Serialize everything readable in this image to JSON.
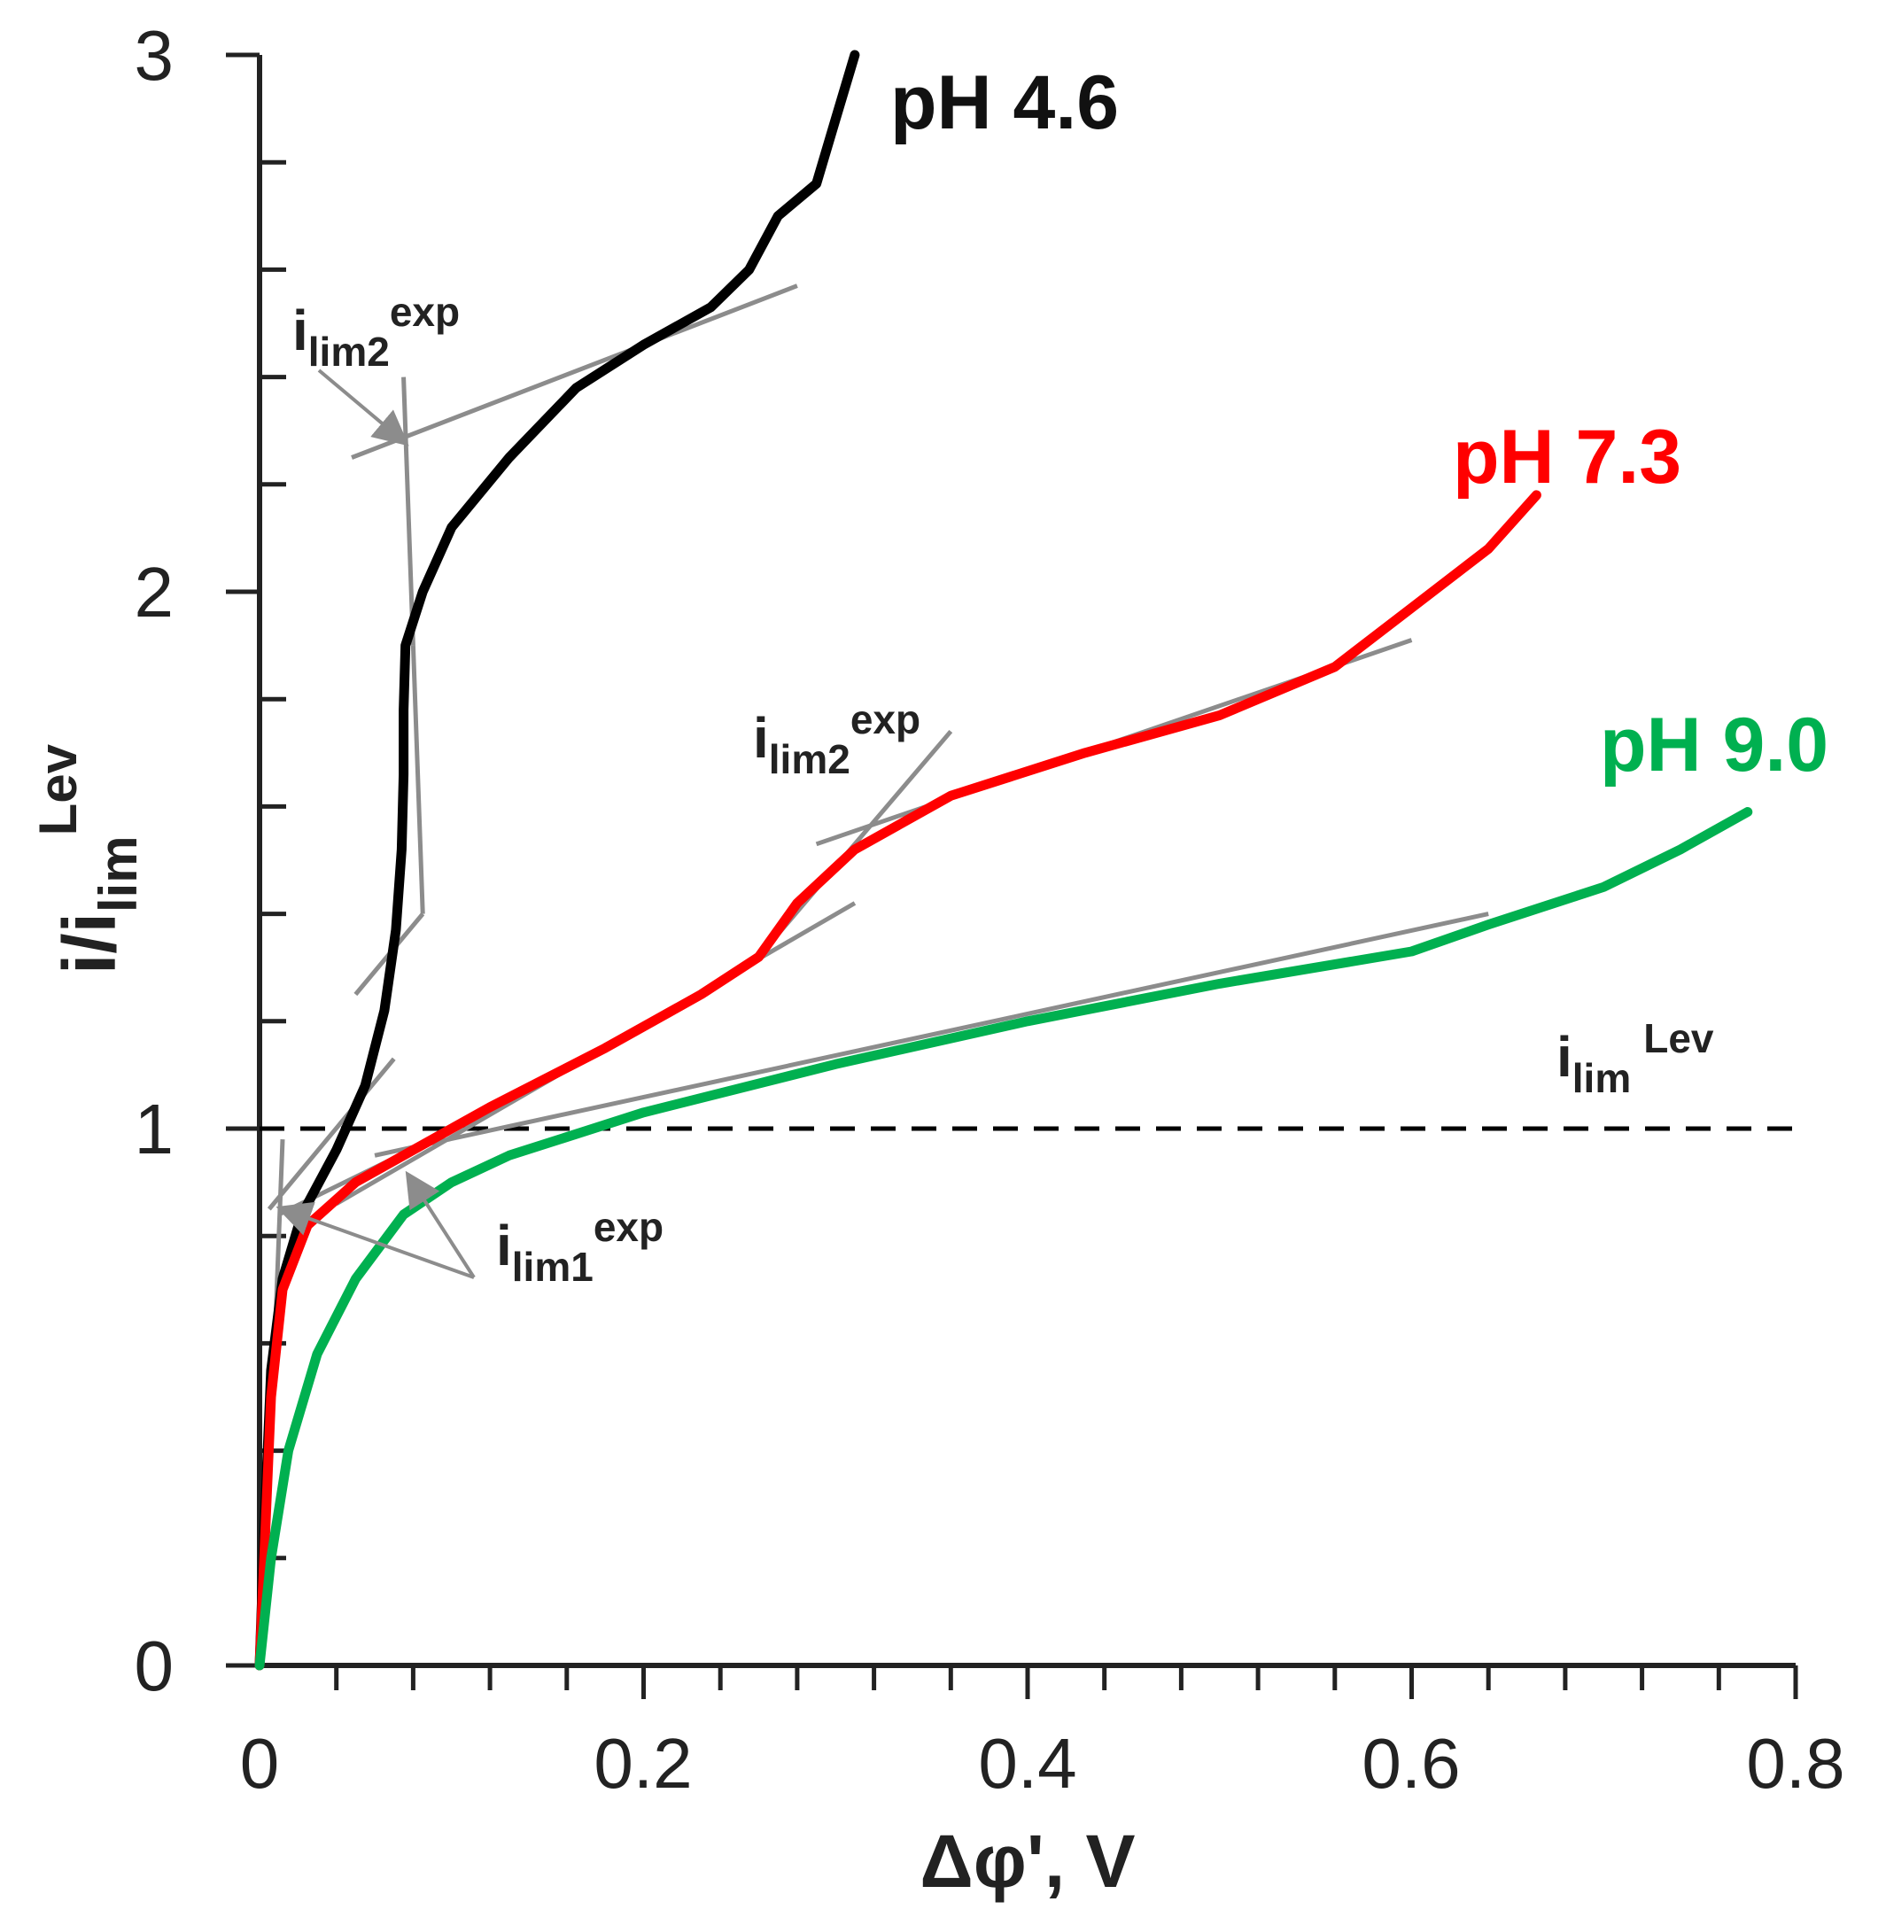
{
  "chart_data": {
    "type": "line",
    "title": "",
    "xlabel": "Δφ', V",
    "ylabel": {
      "main": "i/i",
      "sub": "lim",
      "sup": "Lev"
    },
    "xlim": [
      0,
      0.8
    ],
    "ylim": [
      0,
      3
    ],
    "x_ticks": [
      "0",
      "0.2",
      "0.4",
      "0.6",
      "0.8"
    ],
    "x_tick_values": [
      0,
      0.2,
      0.4,
      0.6,
      0.8
    ],
    "y_ticks": [
      "0",
      "1",
      "2",
      "3"
    ],
    "y_tick_values": [
      0,
      1,
      2,
      3
    ],
    "x_minor_step": 0.04,
    "y_minor_step": 0.2,
    "grid": false,
    "series": [
      {
        "name": "pH 4.6",
        "color": "#000000",
        "points": [
          [
            0,
            0
          ],
          [
            0.003,
            0.3
          ],
          [
            0.006,
            0.55
          ],
          [
            0.012,
            0.72
          ],
          [
            0.022,
            0.84
          ],
          [
            0.04,
            0.96
          ],
          [
            0.055,
            1.08
          ],
          [
            0.065,
            1.22
          ],
          [
            0.071,
            1.37
          ],
          [
            0.074,
            1.52
          ],
          [
            0.075,
            1.66
          ],
          [
            0.075,
            1.78
          ],
          [
            0.076,
            1.9
          ],
          [
            0.085,
            2.0
          ],
          [
            0.1,
            2.12
          ],
          [
            0.13,
            2.25
          ],
          [
            0.165,
            2.38
          ],
          [
            0.2,
            2.46
          ],
          [
            0.235,
            2.53
          ],
          [
            0.255,
            2.6
          ],
          [
            0.27,
            2.7
          ],
          [
            0.29,
            2.76
          ],
          [
            0.3,
            2.88
          ],
          [
            0.31,
            3.0
          ]
        ]
      },
      {
        "name": "pH 7.3",
        "color": "#ff0000",
        "points": [
          [
            0,
            0
          ],
          [
            0.003,
            0.25
          ],
          [
            0.006,
            0.5
          ],
          [
            0.012,
            0.7
          ],
          [
            0.025,
            0.82
          ],
          [
            0.05,
            0.9
          ],
          [
            0.08,
            0.96
          ],
          [
            0.12,
            1.04
          ],
          [
            0.18,
            1.15
          ],
          [
            0.23,
            1.25
          ],
          [
            0.26,
            1.32
          ],
          [
            0.28,
            1.42
          ],
          [
            0.31,
            1.52
          ],
          [
            0.36,
            1.62
          ],
          [
            0.43,
            1.7
          ],
          [
            0.5,
            1.77
          ],
          [
            0.56,
            1.86
          ],
          [
            0.6,
            1.97
          ],
          [
            0.64,
            2.08
          ],
          [
            0.665,
            2.18
          ]
        ]
      },
      {
        "name": "pH 9.0",
        "color": "#00b050",
        "points": [
          [
            0,
            0
          ],
          [
            0.006,
            0.2
          ],
          [
            0.015,
            0.4
          ],
          [
            0.03,
            0.58
          ],
          [
            0.05,
            0.72
          ],
          [
            0.075,
            0.84
          ],
          [
            0.1,
            0.9
          ],
          [
            0.13,
            0.95
          ],
          [
            0.2,
            1.03
          ],
          [
            0.3,
            1.12
          ],
          [
            0.4,
            1.2
          ],
          [
            0.5,
            1.27
          ],
          [
            0.6,
            1.33
          ],
          [
            0.64,
            1.38
          ],
          [
            0.7,
            1.45
          ],
          [
            0.74,
            1.52
          ],
          [
            0.775,
            1.59
          ]
        ]
      }
    ],
    "reference_line": {
      "name": "ilim Lev",
      "y": 1,
      "style": "dashed",
      "color": "#000000"
    },
    "tangent_lines": [
      [
        [
          0.048,
          2.25
        ],
        [
          0.28,
          2.57
        ]
      ],
      [
        [
          0.075,
          2.4
        ],
        [
          0.08,
          1.9
        ]
      ],
      [
        [
          0.08,
          1.9
        ],
        [
          0.085,
          1.4
        ]
      ],
      [
        [
          0.085,
          1.4
        ],
        [
          0.05,
          1.25
        ]
      ],
      [
        [
          0.005,
          0.85
        ],
        [
          0.07,
          1.13
        ]
      ],
      [
        [
          0.003,
          0.15
        ],
        [
          0.012,
          0.98
        ]
      ],
      [
        [
          0.04,
          0.86
        ],
        [
          0.31,
          1.42
        ]
      ],
      [
        [
          0.26,
          1.32
        ],
        [
          0.36,
          1.74
        ]
      ],
      [
        [
          0.29,
          1.53
        ],
        [
          0.6,
          1.91
        ]
      ],
      [
        [
          0.06,
          0.95
        ],
        [
          0.64,
          1.4
        ]
      ],
      [
        [
          0.01,
          0.84
        ],
        [
          0.09,
          0.98
        ]
      ]
    ],
    "annotations": [
      {
        "label": {
          "main": "i",
          "sub": "lim2",
          "sup": "exp"
        },
        "arrow_to": [
          0.075,
          2.28
        ]
      },
      {
        "label": {
          "main": "i",
          "sub": "lim2",
          "sup": "exp"
        }
      },
      {
        "label": {
          "main": "i",
          "sub": "lim1",
          "sup": "exp"
        },
        "arrow_to": [
          [
            0.012,
            0.84
          ],
          [
            0.075,
            0.91
          ]
        ]
      },
      {
        "label": {
          "main": "i",
          "sub": "lim",
          "sup": "Lev"
        }
      }
    ]
  }
}
